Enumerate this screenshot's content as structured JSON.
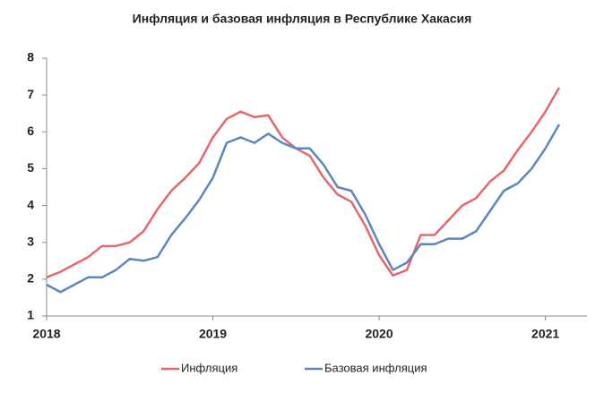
{
  "chart_data": {
    "type": "line",
    "title": "Инфляция и базовая инфляция в Республике Хакасия",
    "x": [
      2018,
      2018.083,
      2018.167,
      2018.25,
      2018.333,
      2018.417,
      2018.5,
      2018.583,
      2018.667,
      2018.75,
      2018.833,
      2018.917,
      2019,
      2019.083,
      2019.167,
      2019.25,
      2019.333,
      2019.417,
      2019.5,
      2019.583,
      2019.667,
      2019.75,
      2019.833,
      2019.917,
      2020,
      2020.083,
      2020.167,
      2020.25,
      2020.333,
      2020.417,
      2020.5,
      2020.583,
      2020.667,
      2020.75,
      2020.833,
      2020.917,
      2021,
      2021.083
    ],
    "series": [
      {
        "name": "Инфляция",
        "color": "#e8666b",
        "values": [
          2.05,
          2.2,
          2.4,
          2.6,
          2.9,
          2.9,
          3.0,
          3.3,
          3.9,
          4.4,
          4.75,
          5.15,
          5.85,
          6.35,
          6.55,
          6.4,
          6.45,
          5.85,
          5.55,
          5.35,
          4.75,
          4.3,
          4.1,
          3.45,
          2.65,
          2.1,
          2.25,
          3.2,
          3.2,
          3.6,
          4.0,
          4.2,
          4.65,
          4.95,
          5.5,
          6.0,
          6.55,
          7.2
        ]
      },
      {
        "name": "Базовая инфляция",
        "color": "#5b86c0",
        "values": [
          1.85,
          1.65,
          1.85,
          2.05,
          2.05,
          2.25,
          2.55,
          2.5,
          2.6,
          3.2,
          3.65,
          4.15,
          4.75,
          5.7,
          5.85,
          5.7,
          5.95,
          5.7,
          5.55,
          5.55,
          5.1,
          4.5,
          4.4,
          3.75,
          2.95,
          2.25,
          2.45,
          2.95,
          2.95,
          3.1,
          3.1,
          3.3,
          3.85,
          4.4,
          4.6,
          5.0,
          5.55,
          6.2
        ]
      }
    ],
    "xlim": [
      2018,
      2021.25
    ],
    "xticks": [
      2018,
      2019,
      2020,
      2021
    ],
    "ylim": [
      1,
      8
    ],
    "yticks": [
      1,
      2,
      3,
      4,
      5,
      6,
      7,
      8
    ],
    "legend": "bottom"
  }
}
